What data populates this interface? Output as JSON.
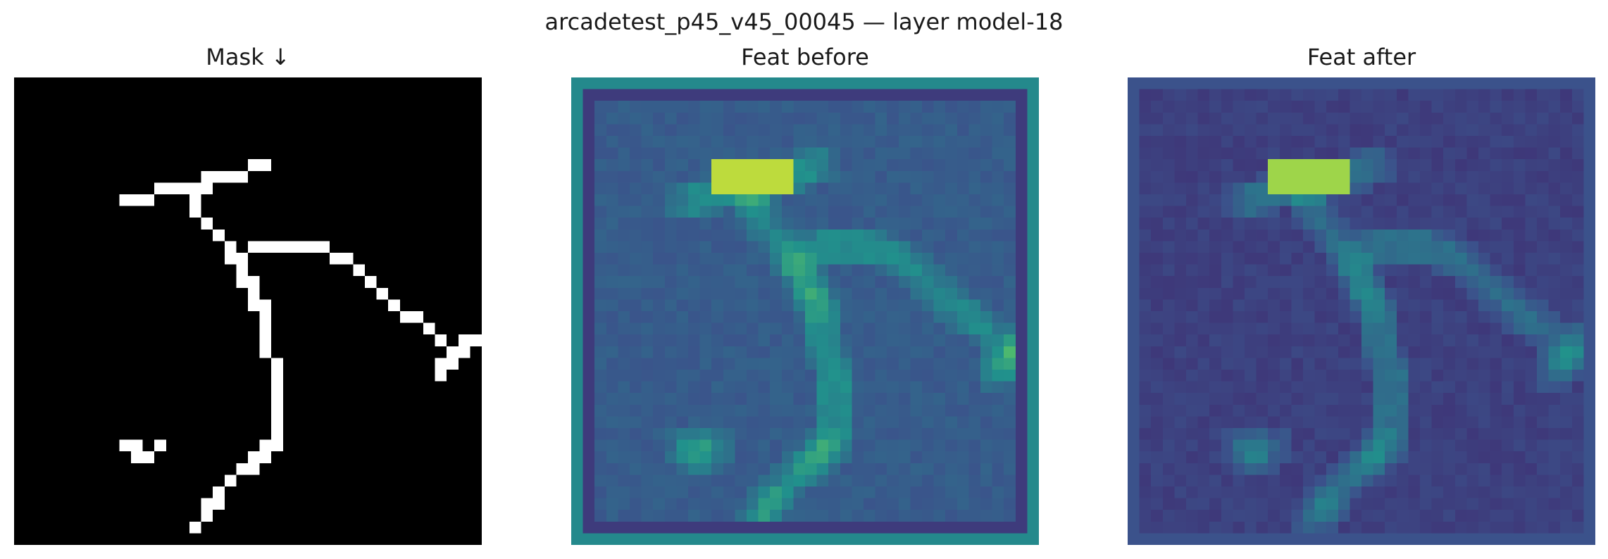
{
  "figure": {
    "suptitle": "arcadetest_p45_v45_00045 — layer model-18",
    "panels": [
      {
        "title": "Mask ↓",
        "colormap": "binary-gray"
      },
      {
        "title": "Feat before",
        "colormap": "viridis"
      },
      {
        "title": "Feat after",
        "colormap": "viridis"
      }
    ]
  },
  "colors": {
    "mask_background": "#000000",
    "mask_foreground": "#ffffff",
    "viridis_low": "#440154",
    "viridis_mid": "#21918c",
    "viridis_high": "#fde725"
  }
}
